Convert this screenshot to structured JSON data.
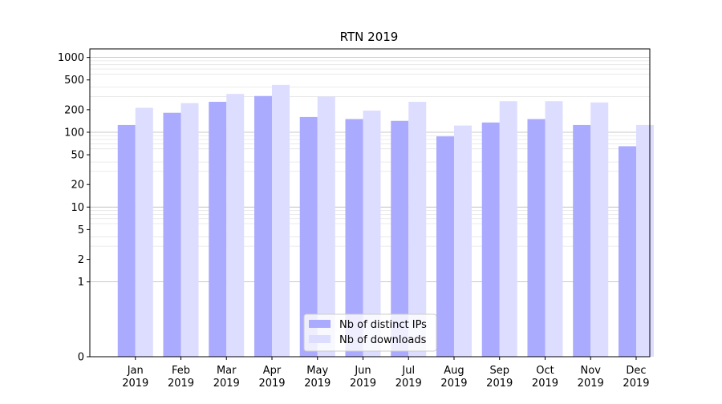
{
  "chart_data": {
    "type": "bar",
    "title": "RTN 2019",
    "xlabel": "",
    "ylabel": "",
    "yscale": "symlog",
    "categories": [
      "Jan\n2019",
      "Feb\n2019",
      "Mar\n2019",
      "Apr\n2019",
      "May\n2019",
      "Jun\n2019",
      "Jul\n2019",
      "Aug\n2019",
      "Sep\n2019",
      "Oct\n2019",
      "Nov\n2019",
      "Dec\n2019"
    ],
    "series": [
      {
        "name": "Nb of distinct IPs",
        "color": "#aaaaff",
        "values": [
          125,
          182,
          255,
          305,
          160,
          150,
          142,
          88,
          135,
          150,
          125,
          65
        ]
      },
      {
        "name": "Nb of downloads",
        "color": "#ddddff",
        "values": [
          212,
          245,
          325,
          430,
          300,
          195,
          255,
          123,
          260,
          260,
          250,
          125
        ]
      }
    ],
    "yticks": [
      0,
      1,
      2,
      5,
      10,
      20,
      50,
      100,
      200,
      500,
      1000
    ],
    "ylim": [
      0,
      1300
    ],
    "legend": "lower-center",
    "grid": true
  }
}
